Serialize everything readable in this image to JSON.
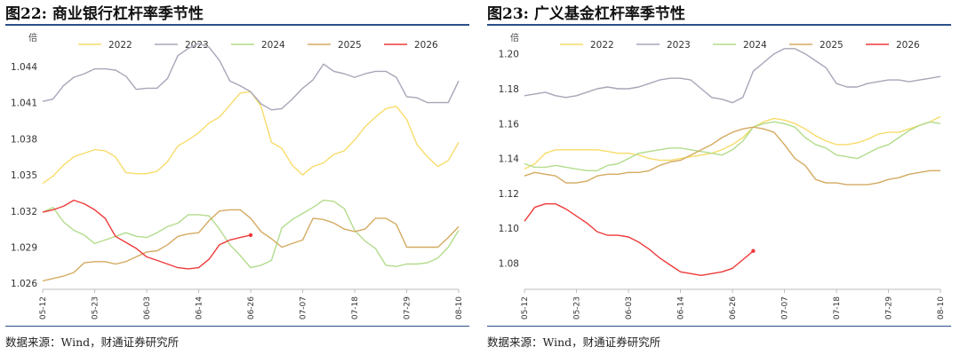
{
  "panels": [
    {
      "title": "图22: 商业银行杠杆率季节性",
      "unit": "倍",
      "source": "数据来源：Wind，财通证券研究所"
    },
    {
      "title": "图23: 广义基金杠杆率季节性",
      "unit": "倍",
      "source": "数据来源：Wind，财通证券研究所"
    }
  ],
  "chart_data": [
    {
      "type": "line",
      "title": "图22: 商业银行杠杆率季节性",
      "ylabel": "倍",
      "ylim": [
        1.0255,
        1.0465
      ],
      "yticks": [
        "1.026",
        "1.029",
        "1.032",
        "1.035",
        "1.038",
        "1.041",
        "1.044"
      ],
      "xticks": [
        "05-12",
        "05-23",
        "06-03",
        "06-14",
        "06-26",
        "07-07",
        "07-18",
        "07-29",
        "08-10"
      ],
      "legend_position": "top",
      "grid": false,
      "x": [
        "05-12",
        "05-15",
        "05-17",
        "05-19",
        "05-21",
        "05-23",
        "05-25",
        "05-27",
        "05-29",
        "05-31",
        "06-03",
        "06-05",
        "06-07",
        "06-09",
        "06-11",
        "06-14",
        "06-16",
        "06-18",
        "06-20",
        "06-22",
        "06-26",
        "06-28",
        "06-30",
        "07-02",
        "07-04",
        "07-07",
        "07-09",
        "07-11",
        "07-13",
        "07-15",
        "07-18",
        "07-20",
        "07-22",
        "07-24",
        "07-26",
        "07-29",
        "07-31",
        "08-02",
        "08-04",
        "08-06",
        "08-10"
      ],
      "series": [
        {
          "name": "2022",
          "color": "#f7dc6a",
          "values": [
            1.0343,
            1.0349,
            1.0358,
            1.0365,
            1.0368,
            1.0371,
            1.037,
            1.0365,
            1.0352,
            1.0351,
            1.0351,
            1.0353,
            1.0361,
            1.0374,
            1.0379,
            1.0385,
            1.0393,
            1.0398,
            1.0408,
            1.0418,
            1.0419,
            1.0407,
            1.0377,
            1.0372,
            1.0358,
            1.035,
            1.0357,
            1.036,
            1.0367,
            1.037,
            1.0379,
            1.039,
            1.0398,
            1.0405,
            1.0407,
            1.0396,
            1.0375,
            1.0365,
            1.0357,
            1.0362,
            1.0377
          ]
        },
        {
          "name": "2023",
          "color": "#a6a6b8",
          "values": [
            1.0411,
            1.0413,
            1.0424,
            1.0431,
            1.0434,
            1.0438,
            1.0438,
            1.0437,
            1.0432,
            1.0421,
            1.0422,
            1.0422,
            1.043,
            1.0449,
            1.0455,
            1.0459,
            1.0456,
            1.0445,
            1.0428,
            1.0424,
            1.0419,
            1.0409,
            1.0404,
            1.0405,
            1.0413,
            1.0422,
            1.0429,
            1.0442,
            1.0436,
            1.0434,
            1.0431,
            1.0434,
            1.0436,
            1.0436,
            1.0431,
            1.0415,
            1.0414,
            1.041,
            1.041,
            1.041,
            1.0428
          ]
        },
        {
          "name": "2024",
          "color": "#b2dc8c",
          "values": [
            1.0319,
            1.0323,
            1.0311,
            1.0304,
            1.03,
            1.0293,
            1.0296,
            1.0299,
            1.0302,
            1.0299,
            1.0298,
            1.0302,
            1.0307,
            1.031,
            1.0317,
            1.0317,
            1.0316,
            1.0305,
            1.0292,
            1.0283,
            1.0273,
            1.0275,
            1.0279,
            1.0306,
            1.0313,
            1.0318,
            1.0323,
            1.0329,
            1.0328,
            1.0322,
            1.0304,
            1.0295,
            1.0289,
            1.0275,
            1.0274,
            1.0276,
            1.0276,
            1.0277,
            1.0281,
            1.029,
            1.0304
          ]
        },
        {
          "name": "2025",
          "color": "#d4aa60",
          "values": [
            1.0262,
            1.0264,
            1.0266,
            1.0269,
            1.0277,
            1.0278,
            1.0278,
            1.0276,
            1.0278,
            1.0282,
            1.0286,
            1.0287,
            1.0292,
            1.0299,
            1.0301,
            1.0302,
            1.0312,
            1.032,
            1.0321,
            1.0321,
            1.0314,
            1.0303,
            1.0297,
            1.029,
            1.0293,
            1.0296,
            1.0314,
            1.0313,
            1.031,
            1.0305,
            1.0303,
            1.0305,
            1.0314,
            1.0314,
            1.0309,
            1.029,
            1.029,
            1.029,
            1.029,
            1.0298,
            1.0307
          ]
        },
        {
          "name": "2026",
          "color": "#ee3a3a",
          "values": [
            1.0319,
            1.0321,
            1.0324,
            1.0329,
            1.0326,
            1.0321,
            1.0314,
            1.0299,
            1.0294,
            1.0289,
            1.0282,
            1.0279,
            1.0276,
            1.0273,
            1.0272,
            1.0273,
            1.028,
            1.0292,
            1.0296,
            1.0298,
            1.03,
            null,
            null,
            null,
            null,
            null,
            null,
            null,
            null,
            null,
            null,
            null,
            null,
            null,
            null,
            null,
            null,
            null,
            null,
            null,
            null
          ]
        }
      ]
    },
    {
      "type": "line",
      "title": "图23: 广义基金杠杆率季节性",
      "ylabel": "倍",
      "ylim": [
        1.065,
        1.21
      ],
      "yticks": [
        "1.08",
        "1.10",
        "1.12",
        "1.14",
        "1.16",
        "1.18",
        "1.20"
      ],
      "xticks": [
        "05-12",
        "05-23",
        "06-03",
        "06-14",
        "06-26",
        "07-07",
        "07-18",
        "07-29",
        "08-10"
      ],
      "legend_position": "top",
      "grid": false,
      "x": [
        "05-12",
        "05-15",
        "05-17",
        "05-19",
        "05-21",
        "05-23",
        "05-25",
        "05-27",
        "05-29",
        "05-31",
        "06-03",
        "06-05",
        "06-07",
        "06-09",
        "06-11",
        "06-14",
        "06-16",
        "06-18",
        "06-20",
        "06-22",
        "06-26",
        "06-28",
        "06-30",
        "07-02",
        "07-04",
        "07-07",
        "07-09",
        "07-11",
        "07-13",
        "07-15",
        "07-18",
        "07-20",
        "07-22",
        "07-24",
        "07-26",
        "07-29",
        "07-31",
        "08-02",
        "08-04",
        "08-06",
        "08-10"
      ],
      "series": [
        {
          "name": "2022",
          "color": "#f7dc6a",
          "values": [
            1.134,
            1.137,
            1.143,
            1.145,
            1.145,
            1.145,
            1.145,
            1.145,
            1.144,
            1.143,
            1.143,
            1.142,
            1.14,
            1.139,
            1.139,
            1.14,
            1.141,
            1.142,
            1.143,
            1.145,
            1.148,
            1.152,
            1.158,
            1.161,
            1.163,
            1.162,
            1.16,
            1.157,
            1.153,
            1.15,
            1.148,
            1.148,
            1.149,
            1.151,
            1.154,
            1.155,
            1.155,
            1.157,
            1.159,
            1.161,
            1.164
          ]
        },
        {
          "name": "2023",
          "color": "#a6a6b8",
          "values": [
            1.176,
            1.177,
            1.178,
            1.176,
            1.175,
            1.176,
            1.178,
            1.18,
            1.181,
            1.18,
            1.18,
            1.181,
            1.183,
            1.185,
            1.186,
            1.186,
            1.185,
            1.18,
            1.175,
            1.174,
            1.172,
            1.175,
            1.19,
            1.195,
            1.2,
            1.203,
            1.203,
            1.2,
            1.196,
            1.192,
            1.183,
            1.181,
            1.181,
            1.183,
            1.184,
            1.185,
            1.185,
            1.184,
            1.185,
            1.186,
            1.187
          ]
        },
        {
          "name": "2024",
          "color": "#b2dc8c",
          "values": [
            1.137,
            1.135,
            1.135,
            1.136,
            1.135,
            1.134,
            1.133,
            1.133,
            1.136,
            1.137,
            1.14,
            1.143,
            1.144,
            1.145,
            1.146,
            1.146,
            1.145,
            1.144,
            1.143,
            1.142,
            1.145,
            1.15,
            1.158,
            1.16,
            1.161,
            1.16,
            1.158,
            1.152,
            1.148,
            1.146,
            1.142,
            1.141,
            1.14,
            1.143,
            1.146,
            1.148,
            1.152,
            1.156,
            1.159,
            1.161,
            1.16
          ]
        },
        {
          "name": "2025",
          "color": "#d4aa60",
          "values": [
            1.13,
            1.132,
            1.131,
            1.13,
            1.126,
            1.126,
            1.127,
            1.13,
            1.131,
            1.131,
            1.132,
            1.132,
            1.133,
            1.136,
            1.138,
            1.139,
            1.142,
            1.145,
            1.148,
            1.152,
            1.155,
            1.157,
            1.158,
            1.157,
            1.155,
            1.148,
            1.14,
            1.136,
            1.128,
            1.126,
            1.126,
            1.125,
            1.125,
            1.125,
            1.126,
            1.128,
            1.129,
            1.131,
            1.132,
            1.133,
            1.133
          ]
        },
        {
          "name": "2026",
          "color": "#ee3a3a",
          "values": [
            1.104,
            1.112,
            1.114,
            1.114,
            1.111,
            1.107,
            1.103,
            1.098,
            1.096,
            1.096,
            1.095,
            1.092,
            1.088,
            1.083,
            1.079,
            1.075,
            1.074,
            1.073,
            1.074,
            1.075,
            1.077,
            1.082,
            1.087,
            null,
            null,
            null,
            null,
            null,
            null,
            null,
            null,
            null,
            null,
            null,
            null,
            null,
            null,
            null,
            null,
            null,
            null
          ]
        }
      ]
    }
  ]
}
